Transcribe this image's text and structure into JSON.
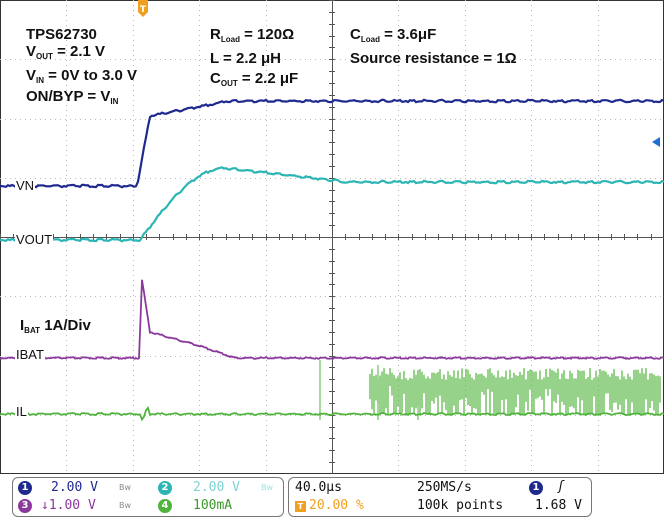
{
  "scope": {
    "annotations": {
      "device": "TPS62730",
      "vout_sym": "V",
      "vout_sub": "OUT",
      "vout_val": " = 2.1 V",
      "vin_sym": "V",
      "vin_sub": "IN",
      "vin_val": " = 0V to 3.0 V",
      "onbyp_text": "ON/BYP = V",
      "onbyp_sub": "IN",
      "rload_sym": "R",
      "rload_sub": "Load",
      "rload_val": " = 120Ω",
      "l_text": "L = 2.2 μH",
      "cout_sym": "C",
      "cout_sub": "OUT",
      "cout_val": " = 2.2 μF",
      "cload_sym": "C",
      "cload_sub": "Load",
      "cload_val": " = 3.6μF",
      "source_res": "Source resistance = 1Ω",
      "ibat_sym": "I",
      "ibat_sub": "BAT",
      "ibat_val": " 1A/Div"
    },
    "trace_labels": {
      "vn": "VN",
      "vout": "VOUT",
      "ibat": "IBAT",
      "il": "IL"
    },
    "trigger_marker": "T",
    "colors": {
      "ch1": "#1f2a8f",
      "ch2": "#2bb5b5",
      "ch3": "#8b3a9b",
      "ch4": "#4fb33c",
      "trigger": "#f0a020"
    }
  },
  "statusbar": {
    "ch1": {
      "num": "1",
      "scale": "2.00 V",
      "bw": "Bw"
    },
    "ch2": {
      "num": "2",
      "scale": "2.00 V",
      "bw": "Bw"
    },
    "ch3": {
      "num": "3",
      "scale": "↓1.00 V",
      "bw": "Bw"
    },
    "ch4": {
      "num": "4",
      "scale": "100mA"
    },
    "timebase": "40.0μs",
    "trigger_pos_icon": "T",
    "trigger_pos": "20.00 %",
    "sample_rate": "250MS/s",
    "record_length": "100k points",
    "trigger_source": "1",
    "trigger_slope": "ʃ",
    "trigger_level": "1.68 V"
  }
}
